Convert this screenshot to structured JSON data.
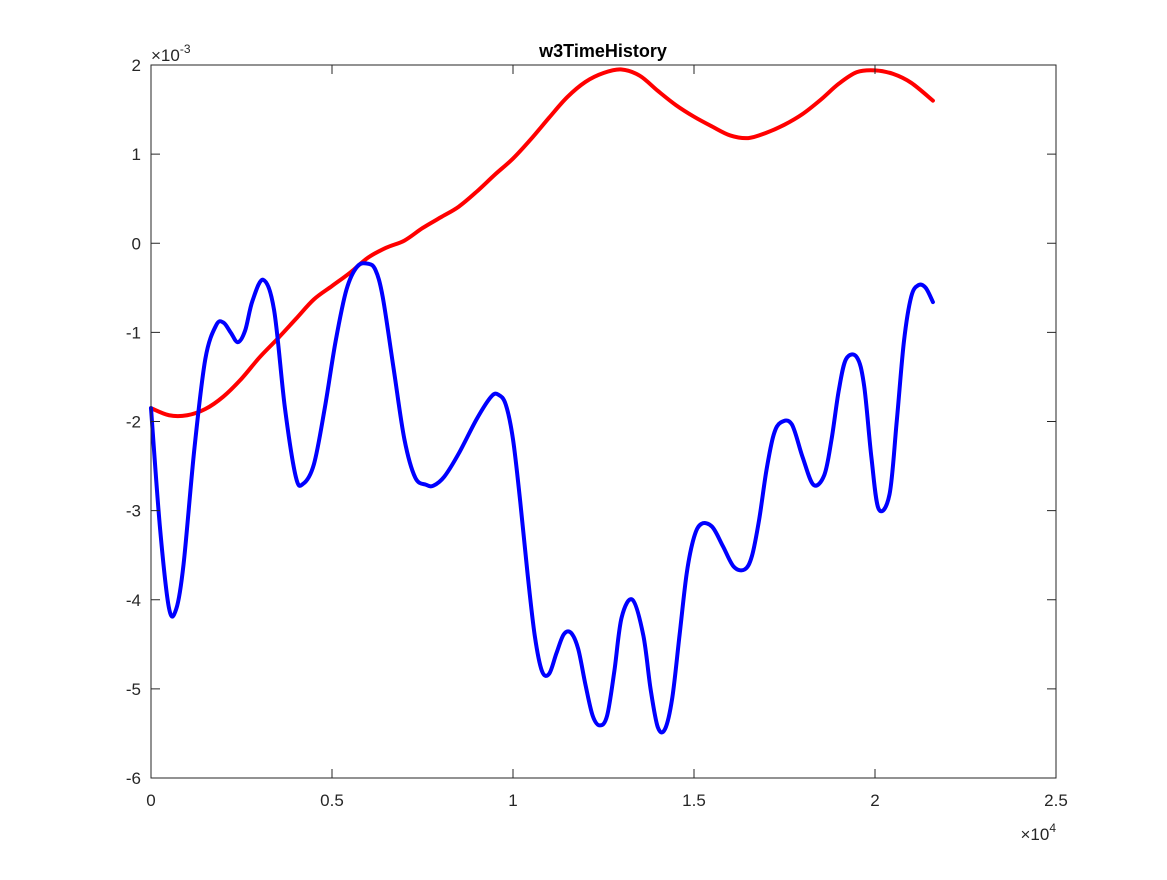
{
  "chart_data": {
    "type": "line",
    "title": "w3TimeHistory",
    "xlabel": "",
    "ylabel": "",
    "xlim": [
      0,
      25000
    ],
    "ylim": [
      -0.006,
      0.002
    ],
    "x_ticks": [
      0,
      5000,
      10000,
      15000,
      20000,
      25000
    ],
    "x_tick_labels": [
      "0",
      "0.5",
      "1",
      "1.5",
      "2",
      "2.5"
    ],
    "y_ticks": [
      -0.006,
      -0.005,
      -0.004,
      -0.003,
      -0.002,
      -0.001,
      0,
      0.001,
      0.002
    ],
    "y_tick_labels": [
      "-6",
      "-5",
      "-4",
      "-3",
      "-2",
      "-1",
      "0",
      "1",
      "2"
    ],
    "x_exponent_base": "×10",
    "x_exponent_power": "4",
    "y_exponent_base": "×10",
    "y_exponent_power": "-3",
    "grid": false,
    "box": true,
    "series": [
      {
        "color": "#ff0000",
        "line_width": 4,
        "x": [
          0,
          500,
          1000,
          1500,
          2000,
          2500,
          3000,
          3500,
          4000,
          4500,
          5000,
          5500,
          6000,
          6500,
          7000,
          7500,
          8000,
          8500,
          9000,
          9500,
          10000,
          10500,
          11000,
          11500,
          12000,
          12500,
          13000,
          13500,
          14000,
          14500,
          15000,
          15500,
          16000,
          16500,
          17000,
          17500,
          18000,
          18500,
          19000,
          19500,
          20000,
          20500,
          21000,
          21600
        ],
        "y": [
          -0.00185,
          -0.00193,
          -0.00193,
          -0.00186,
          -0.00172,
          -0.00152,
          -0.00128,
          -0.00107,
          -0.00085,
          -0.00063,
          -0.00048,
          -0.00033,
          -0.00016,
          -5e-05,
          3e-05,
          0.00017,
          0.00029,
          0.00041,
          0.00058,
          0.00077,
          0.00095,
          0.00117,
          0.00141,
          0.00164,
          0.00181,
          0.00191,
          0.00195,
          0.00188,
          0.00171,
          0.00155,
          0.00142,
          0.00131,
          0.00121,
          0.00118,
          0.00124,
          0.00133,
          0.00145,
          0.00161,
          0.00179,
          0.00192,
          0.00194,
          0.0019,
          0.0018,
          0.0016
        ]
      },
      {
        "color": "#0000ff",
        "line_width": 4,
        "x": [
          0,
          250,
          500,
          700,
          900,
          1200,
          1500,
          1800,
          2000,
          2200,
          2400,
          2600,
          2800,
          3100,
          3400,
          3700,
          4000,
          4200,
          4500,
          4800,
          5100,
          5400,
          5700,
          6000,
          6200,
          6400,
          6700,
          7000,
          7300,
          7600,
          7800,
          8100,
          8500,
          9000,
          9400,
          9600,
          9800,
          10000,
          10200,
          10400,
          10600,
          10800,
          11000,
          11200,
          11400,
          11600,
          11800,
          12000,
          12200,
          12400,
          12600,
          12800,
          13000,
          13300,
          13600,
          13800,
          14000,
          14200,
          14400,
          14600,
          14800,
          15000,
          15200,
          15500,
          15800,
          16100,
          16400,
          16600,
          16800,
          17000,
          17200,
          17400,
          17700,
          18000,
          18300,
          18600,
          18800,
          19000,
          19200,
          19500,
          19700,
          19900,
          20100,
          20400,
          20600,
          20800,
          21000,
          21200,
          21400,
          21600
        ],
        "y": [
          -0.00185,
          -0.0032,
          -0.0041,
          -0.0041,
          -0.0036,
          -0.0023,
          -0.0013,
          -0.00092,
          -0.00089,
          -0.001,
          -0.00111,
          -0.00098,
          -0.00065,
          -0.00041,
          -0.00075,
          -0.00185,
          -0.00262,
          -0.0027,
          -0.00248,
          -0.00185,
          -0.0011,
          -0.00052,
          -0.00026,
          -0.00023,
          -0.0003,
          -0.0006,
          -0.0014,
          -0.0022,
          -0.00263,
          -0.00271,
          -0.00272,
          -0.00262,
          -0.00236,
          -0.00197,
          -0.00172,
          -0.0017,
          -0.00181,
          -0.0022,
          -0.0029,
          -0.0037,
          -0.0044,
          -0.0048,
          -0.00483,
          -0.0046,
          -0.00439,
          -0.00437,
          -0.00455,
          -0.00495,
          -0.0053,
          -0.00541,
          -0.0053,
          -0.0048,
          -0.0042,
          -0.004,
          -0.0044,
          -0.005,
          -0.00543,
          -0.00545,
          -0.0051,
          -0.0044,
          -0.0037,
          -0.0033,
          -0.00315,
          -0.00318,
          -0.0034,
          -0.00363,
          -0.00366,
          -0.00351,
          -0.0031,
          -0.00255,
          -0.00215,
          -0.00201,
          -0.00203,
          -0.0024,
          -0.00271,
          -0.0026,
          -0.0022,
          -0.00165,
          -0.0013,
          -0.00128,
          -0.0016,
          -0.0024,
          -0.00298,
          -0.00282,
          -0.002,
          -0.0011,
          -0.0006,
          -0.00047,
          -0.0005,
          -0.00066
        ]
      }
    ]
  }
}
